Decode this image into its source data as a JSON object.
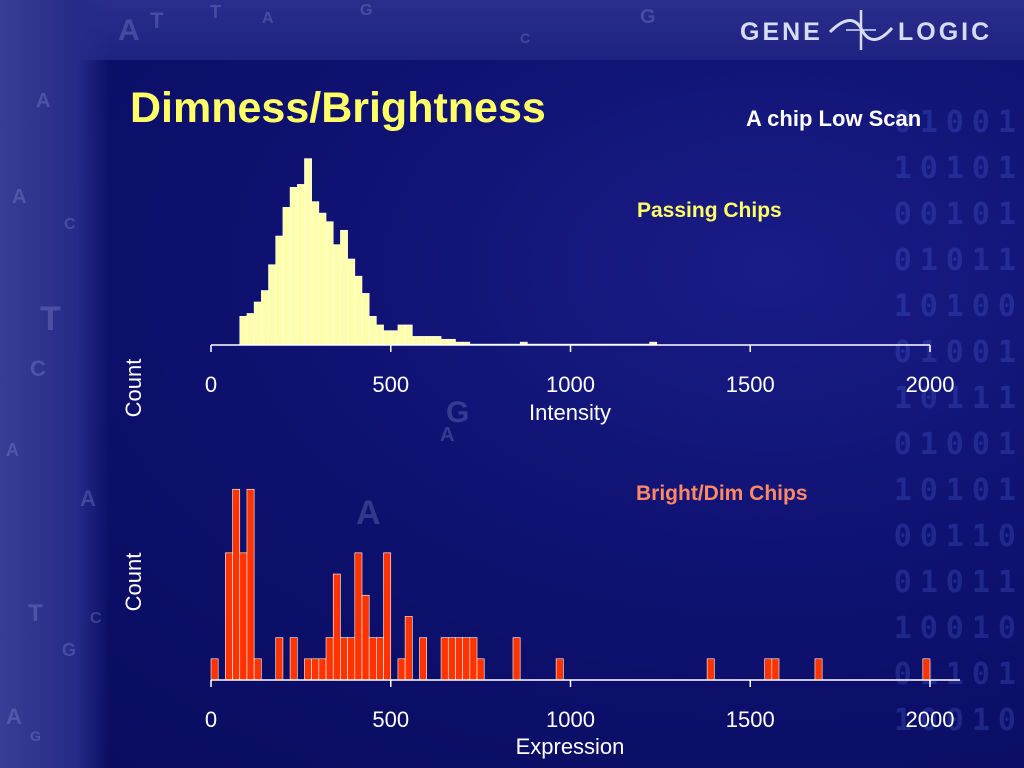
{
  "logo": {
    "word1": "GENE",
    "word2": "LOGIC"
  },
  "slide": {
    "title": "Dimness/Brightness",
    "subtitle": "A chip Low Scan"
  },
  "colors": {
    "background": "#0b0f66",
    "title": "#ffff66",
    "bar_passing": "#ffffaa",
    "bar_bright_dim": "#ff3300",
    "label_passing": "#ffff66",
    "label_bright_dim": "#ff8866"
  },
  "chart_data": [
    {
      "type": "bar",
      "series_label": "Passing Chips",
      "xlabel": "Intensity",
      "ylabel": "Count",
      "xlim": [
        0,
        2000
      ],
      "xticks": [
        "0",
        "500",
        "1000",
        "1500",
        "2000"
      ],
      "bin_width": 20,
      "x": [
        80,
        100,
        120,
        140,
        160,
        180,
        200,
        220,
        240,
        260,
        280,
        300,
        320,
        340,
        360,
        380,
        400,
        420,
        440,
        460,
        480,
        500,
        520,
        540,
        560,
        580,
        600,
        620,
        640,
        660,
        680,
        700,
        720,
        740,
        760,
        780,
        800,
        820,
        840,
        860,
        880,
        900,
        920,
        940,
        960,
        980,
        1000,
        1020,
        1040,
        1060,
        1080,
        1100,
        1120,
        1140,
        1160,
        1180,
        1200,
        1220
      ],
      "values": [
        10,
        11,
        15,
        19,
        28,
        38,
        48,
        55,
        56,
        65,
        50,
        46,
        43,
        35,
        40,
        30,
        24,
        18,
        10,
        7,
        5,
        5,
        7,
        7,
        3,
        3,
        3,
        3,
        2,
        2,
        1,
        1,
        0,
        0,
        0,
        0,
        0,
        0,
        0,
        1,
        0,
        0,
        0,
        0,
        0,
        0,
        0,
        0,
        0,
        0,
        0,
        0,
        0,
        0,
        0,
        0,
        0,
        1
      ],
      "ylim": [
        0,
        68
      ]
    },
    {
      "type": "bar",
      "series_label": "Bright/Dim Chips",
      "xlabel": "Expression",
      "ylabel": "Count",
      "xlim": [
        0,
        2000
      ],
      "xticks": [
        "0",
        "500",
        "1000",
        "1500",
        "2000"
      ],
      "bin_width": 20,
      "x": [
        0,
        40,
        60,
        80,
        100,
        120,
        180,
        220,
        260,
        280,
        300,
        320,
        340,
        360,
        380,
        400,
        420,
        440,
        460,
        480,
        520,
        540,
        580,
        640,
        660,
        680,
        700,
        720,
        740,
        840,
        960,
        1380,
        1540,
        1560,
        1680,
        1980
      ],
      "values": [
        1,
        6,
        9,
        6,
        9,
        1,
        2,
        2,
        1,
        1,
        1,
        2,
        5,
        2,
        2,
        6,
        4,
        2,
        2,
        6,
        1,
        3,
        2,
        2,
        2,
        2,
        2,
        2,
        1,
        2,
        1,
        1,
        1,
        1,
        1,
        1
      ],
      "ylim": [
        0,
        9.2
      ]
    }
  ]
}
